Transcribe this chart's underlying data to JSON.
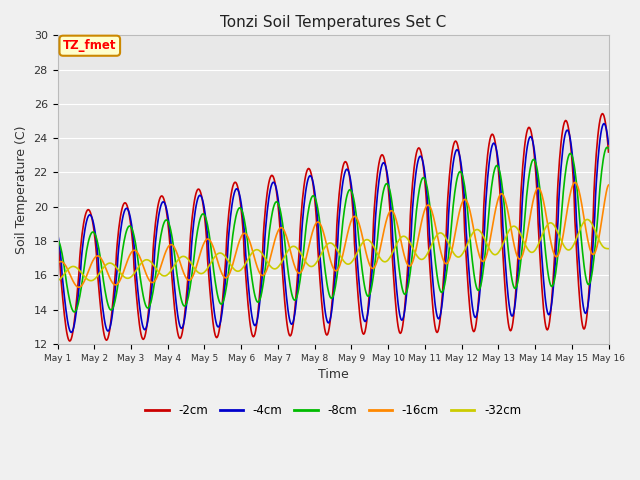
{
  "title": "Tonzi Soil Temperatures Set C",
  "xlabel": "Time",
  "ylabel": "Soil Temperature (C)",
  "ylim": [
    12,
    30
  ],
  "xlim": [
    0,
    360
  ],
  "background_color": "#f0f0f0",
  "plot_bg_color": "#e8e8e8",
  "annotation_text": "TZ_fmet",
  "annotation_bg": "#ffffcc",
  "annotation_border": "#cc8800",
  "legend_labels": [
    "-2cm",
    "-4cm",
    "-8cm",
    "-16cm",
    "-32cm"
  ],
  "line_colors": [
    "#cc0000",
    "#0000cc",
    "#00bb00",
    "#ff8800",
    "#cccc00"
  ],
  "line_widths": [
    1.2,
    1.2,
    1.2,
    1.2,
    1.2
  ],
  "xtick_labels": [
    "May 1",
    "May 2",
    "May 3",
    "May 4",
    "May 5",
    "May 6",
    "May 7",
    "May 8",
    "May 9",
    "May 10",
    "May 11",
    "May 12",
    "May 13",
    "May 14",
    "May 15",
    "May 16"
  ],
  "xtick_positions": [
    0,
    24,
    48,
    72,
    96,
    120,
    144,
    168,
    192,
    216,
    240,
    264,
    288,
    312,
    336,
    360
  ],
  "ytick_positions": [
    12,
    14,
    16,
    18,
    20,
    22,
    24,
    26,
    28,
    30
  ],
  "grid_color": "#ffffff",
  "n_points": 721
}
